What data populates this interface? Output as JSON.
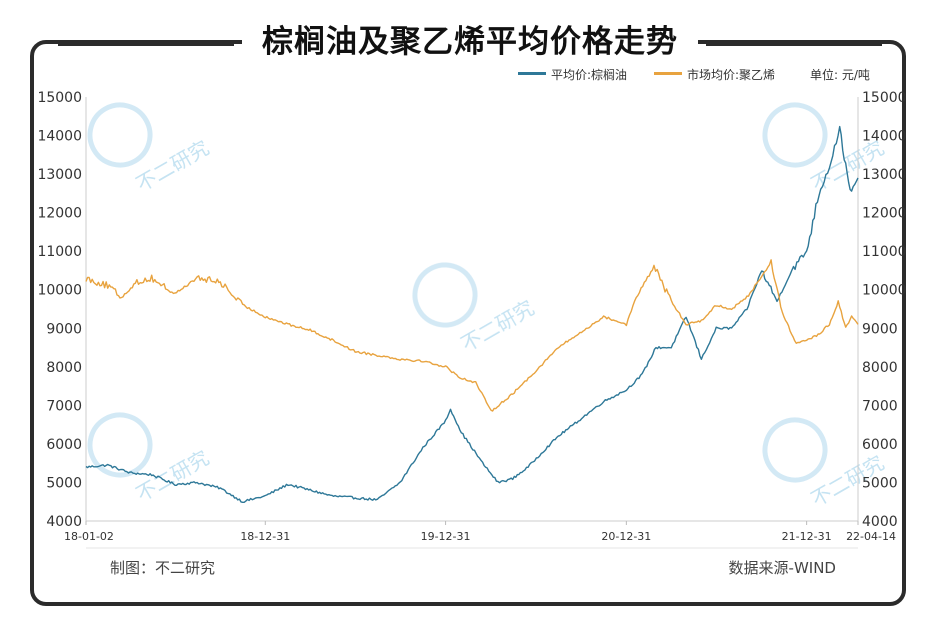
{
  "title": "棕榈油及聚乙烯平均价格走势",
  "legend": {
    "palm": "平均价:棕榈油",
    "pe": "市场均价:聚乙烯",
    "unit": "单位: 元/吨"
  },
  "footer": {
    "maker": "制图：不二研究",
    "source": "数据来源-WIND"
  },
  "watermark": "不二研究",
  "colors": {
    "palm": "#2e7898",
    "pe": "#e8a33f",
    "frame": "#2b2b2b"
  },
  "chart_data": {
    "type": "line",
    "title": "棕榈油及聚乙烯平均价格走势",
    "x_type": "date",
    "x_range": [
      "2018-01-02",
      "2022-04-14"
    ],
    "x_tick_labels": [
      "18-01-02",
      "18-12-31",
      "19-12-31",
      "20-12-31",
      "21-12-31",
      "22-04-14"
    ],
    "y_left": {
      "min": 4000,
      "max": 15000,
      "ticks": [
        15000,
        14000,
        13000,
        12000,
        11000,
        10000,
        9000,
        8000,
        7000,
        6000,
        5000,
        4000
      ]
    },
    "y_right": {
      "min": 4000,
      "max": 15000,
      "ticks": [
        15000,
        14000,
        13000,
        12000,
        11000,
        10000,
        9000,
        8000,
        7000,
        6000,
        5000,
        4000
      ]
    },
    "legend_placement": "top-right",
    "grid": false,
    "series": [
      {
        "name": "平均价:棕榈油",
        "color": "#2e7898",
        "axis": "left",
        "points": [
          [
            "2018-01-02",
            5400
          ],
          [
            "2018-02-15",
            5450
          ],
          [
            "2018-04-01",
            5250
          ],
          [
            "2018-05-15",
            5200
          ],
          [
            "2018-07-01",
            4950
          ],
          [
            "2018-08-15",
            5000
          ],
          [
            "2018-10-01",
            4850
          ],
          [
            "2018-11-15",
            4500
          ],
          [
            "2018-12-31",
            4650
          ],
          [
            "2019-02-15",
            4950
          ],
          [
            "2019-04-01",
            4800
          ],
          [
            "2019-05-15",
            4650
          ],
          [
            "2019-07-01",
            4600
          ],
          [
            "2019-08-15",
            4550
          ],
          [
            "2019-09-30",
            5000
          ],
          [
            "2019-11-15",
            5900
          ],
          [
            "2019-12-31",
            6600
          ],
          [
            "2020-01-10",
            6900
          ],
          [
            "2020-02-01",
            6300
          ],
          [
            "2020-03-15",
            5500
          ],
          [
            "2020-04-15",
            5000
          ],
          [
            "2020-05-15",
            5100
          ],
          [
            "2020-06-15",
            5400
          ],
          [
            "2020-07-15",
            5800
          ],
          [
            "2020-08-15",
            6200
          ],
          [
            "2020-09-15",
            6500
          ],
          [
            "2020-10-15",
            6800
          ],
          [
            "2020-11-15",
            7100
          ],
          [
            "2020-12-31",
            7400
          ],
          [
            "2021-02-01",
            7800
          ],
          [
            "2021-03-01",
            8500
          ],
          [
            "2021-04-01",
            8500
          ],
          [
            "2021-05-01",
            9300
          ],
          [
            "2021-06-01",
            8200
          ],
          [
            "2021-07-01",
            9000
          ],
          [
            "2021-08-01",
            9000
          ],
          [
            "2021-09-01",
            9500
          ],
          [
            "2021-10-01",
            10500
          ],
          [
            "2021-11-01",
            9700
          ],
          [
            "2021-12-01",
            10500
          ],
          [
            "2021-12-31",
            11000
          ],
          [
            "2022-01-25",
            12500
          ],
          [
            "2022-02-15",
            13200
          ],
          [
            "2022-03-08",
            14200
          ],
          [
            "2022-03-20",
            13200
          ],
          [
            "2022-04-01",
            12500
          ],
          [
            "2022-04-14",
            12900
          ]
        ]
      },
      {
        "name": "市场均价:聚乙烯",
        "color": "#e8a33f",
        "axis": "right",
        "points": [
          [
            "2018-01-02",
            10300
          ],
          [
            "2018-02-15",
            10100
          ],
          [
            "2018-03-15",
            9800
          ],
          [
            "2018-04-15",
            10200
          ],
          [
            "2018-05-15",
            10300
          ],
          [
            "2018-07-01",
            9900
          ],
          [
            "2018-08-15",
            10300
          ],
          [
            "2018-10-01",
            10200
          ],
          [
            "2018-11-15",
            9600
          ],
          [
            "2018-12-31",
            9300
          ],
          [
            "2019-02-15",
            9100
          ],
          [
            "2019-04-01",
            8950
          ],
          [
            "2019-05-15",
            8700
          ],
          [
            "2019-07-01",
            8400
          ],
          [
            "2019-08-15",
            8300
          ],
          [
            "2019-09-30",
            8200
          ],
          [
            "2019-11-15",
            8150
          ],
          [
            "2019-12-31",
            8000
          ],
          [
            "2020-02-01",
            7700
          ],
          [
            "2020-03-01",
            7600
          ],
          [
            "2020-04-01",
            6850
          ],
          [
            "2020-05-15",
            7300
          ],
          [
            "2020-07-01",
            7900
          ],
          [
            "2020-08-15",
            8500
          ],
          [
            "2020-10-01",
            8900
          ],
          [
            "2020-11-15",
            9300
          ],
          [
            "2020-12-31",
            9100
          ],
          [
            "2021-01-20",
            9800
          ],
          [
            "2021-02-25",
            10600
          ],
          [
            "2021-04-01",
            9700
          ],
          [
            "2021-05-01",
            9100
          ],
          [
            "2021-06-01",
            9200
          ],
          [
            "2021-07-01",
            9600
          ],
          [
            "2021-08-01",
            9500
          ],
          [
            "2021-09-01",
            9800
          ],
          [
            "2021-10-20",
            10700
          ],
          [
            "2021-11-15",
            9300
          ],
          [
            "2021-12-10",
            8600
          ],
          [
            "2021-12-31",
            8700
          ],
          [
            "2022-01-20",
            8800
          ],
          [
            "2022-02-15",
            9100
          ],
          [
            "2022-03-05",
            9700
          ],
          [
            "2022-03-20",
            9000
          ],
          [
            "2022-04-01",
            9300
          ],
          [
            "2022-04-14",
            9100
          ]
        ]
      }
    ]
  }
}
